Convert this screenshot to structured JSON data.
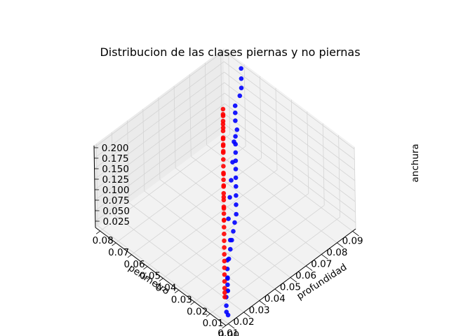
{
  "chart_data": {
    "type": "scatter",
    "projection": "3d",
    "title": "Distribucion de las clases piernas y no piernas",
    "xlabel": "perimetro",
    "ylabel": "profundidad",
    "zlabel": "anchura",
    "xlim": [
      0.0085,
      0.092
    ],
    "ylim": [
      0.0,
      0.083
    ],
    "zlim": [
      0.01,
      0.205
    ],
    "xticks": [
      "0.01",
      "0.02",
      "0.03",
      "0.04",
      "0.05",
      "0.06",
      "0.07",
      "0.08",
      "0.09"
    ],
    "xtick_values": [
      0.01,
      0.02,
      0.03,
      0.04,
      0.05,
      0.06,
      0.07,
      0.08,
      0.09
    ],
    "yticks": [
      "0.00",
      "0.01",
      "0.02",
      "0.03",
      "0.04",
      "0.05",
      "0.06",
      "0.07",
      "0.08"
    ],
    "ytick_values": [
      0.0,
      0.01,
      0.02,
      0.03,
      0.04,
      0.05,
      0.06,
      0.07,
      0.08
    ],
    "zticks": [
      "0.025",
      "0.050",
      "0.075",
      "0.100",
      "0.125",
      "0.150",
      "0.175",
      "0.200"
    ],
    "ztick_values": [
      0.025,
      0.05,
      0.075,
      0.1,
      0.125,
      0.15,
      0.175,
      0.2
    ],
    "grid": true,
    "pane_color": "#f2f2f2",
    "series": [
      {
        "color": "#0000ff",
        "points": [
          [
            0.0901,
            0.0701,
            0.2002
          ],
          [
            0.0861,
            0.0661,
            0.1982
          ],
          [
            0.0821,
            0.0621,
            0.1982
          ],
          [
            0.0781,
            0.0591,
            0.1992
          ],
          [
            0.0721,
            0.0561,
            0.2002
          ],
          [
            0.0691,
            0.0531,
            0.2002
          ],
          [
            0.0661,
            0.0501,
            0.1982
          ],
          [
            0.0631,
            0.0461,
            0.1962
          ],
          [
            0.0601,
            0.0441,
            0.1942
          ],
          [
            0.0571,
            0.0411,
            0.1922
          ],
          [
            0.0541,
            0.0381,
            0.1892
          ],
          [
            0.0511,
            0.0351,
            0.1862
          ],
          [
            0.0481,
            0.0321,
            0.1832
          ],
          [
            0.0451,
            0.0291,
            0.1792
          ],
          [
            0.0421,
            0.0261,
            0.1752
          ],
          [
            0.0391,
            0.0231,
            0.1702
          ],
          [
            0.0361,
            0.0201,
            0.1652
          ],
          [
            0.0331,
            0.0171,
            0.1592
          ],
          [
            0.0301,
            0.0151,
            0.1532
          ],
          [
            0.0271,
            0.0131,
            0.1462
          ],
          [
            0.0241,
            0.0111,
            0.1392
          ],
          [
            0.0211,
            0.0091,
            0.1312
          ],
          [
            0.0181,
            0.0071,
            0.1222
          ],
          [
            0.0151,
            0.0051,
            0.1122
          ],
          [
            0.0131,
            0.0031,
            0.1002
          ],
          [
            0.0121,
            0.0021,
            0.0912
          ],
          [
            0.0111,
            0.0011,
            0.0822
          ],
          [
            0.0101,
            0.0011,
            0.0702
          ],
          [
            0.0091,
            0.0001,
            0.0552
          ],
          [
            0.0091,
            0.0001,
            0.0402
          ],
          [
            0.0101,
            0.0001,
            0.0302
          ],
          [
            0.0151,
            0.0051,
            0.0602
          ],
          [
            0.0171,
            0.0071,
            0.0802
          ],
          [
            0.0201,
            0.0101,
            0.1052
          ],
          [
            0.0261,
            0.0141,
            0.1252
          ],
          [
            0.0311,
            0.0201,
            0.1452
          ],
          [
            0.0381,
            0.0261,
            0.1602
          ],
          [
            0.0441,
            0.0311,
            0.1702
          ],
          [
            0.0511,
            0.0371,
            0.1772
          ],
          [
            0.0591,
            0.0441,
            0.1842
          ]
        ]
      },
      {
        "color": "#ff0000",
        "points": [
          [
            0.0601,
            0.0521,
            0.1652
          ],
          [
            0.0581,
            0.0501,
            0.1602
          ],
          [
            0.0561,
            0.0481,
            0.1552
          ],
          [
            0.0541,
            0.0461,
            0.1502
          ],
          [
            0.0521,
            0.0441,
            0.1452
          ],
          [
            0.0501,
            0.0421,
            0.1402
          ],
          [
            0.0481,
            0.0401,
            0.1352
          ],
          [
            0.0461,
            0.0381,
            0.1302
          ],
          [
            0.0441,
            0.0361,
            0.1252
          ],
          [
            0.0421,
            0.0341,
            0.1202
          ],
          [
            0.0401,
            0.0321,
            0.1152
          ],
          [
            0.0381,
            0.0301,
            0.1102
          ],
          [
            0.0361,
            0.0281,
            0.1052
          ],
          [
            0.0341,
            0.0261,
            0.1002
          ],
          [
            0.0321,
            0.0241,
            0.0952
          ],
          [
            0.0301,
            0.0221,
            0.0902
          ],
          [
            0.0281,
            0.0201,
            0.0852
          ],
          [
            0.0261,
            0.0181,
            0.0802
          ],
          [
            0.0241,
            0.0161,
            0.0752
          ],
          [
            0.0221,
            0.0141,
            0.0702
          ],
          [
            0.0201,
            0.0121,
            0.0652
          ],
          [
            0.0181,
            0.0101,
            0.0602
          ],
          [
            0.0161,
            0.0081,
            0.0552
          ],
          [
            0.0151,
            0.0071,
            0.0502
          ],
          [
            0.0141,
            0.0061,
            0.0452
          ],
          [
            0.0701,
            0.0621,
            0.1452
          ],
          [
            0.0681,
            0.0601,
            0.1402
          ],
          [
            0.0661,
            0.0581,
            0.1352
          ],
          [
            0.0641,
            0.0561,
            0.1302
          ],
          [
            0.0621,
            0.0541,
            0.1252
          ],
          [
            0.0761,
            0.0681,
            0.1352
          ],
          [
            0.0741,
            0.0661,
            0.1302
          ],
          [
            0.0721,
            0.0641,
            0.1252
          ],
          [
            0.0801,
            0.0721,
            0.1252
          ],
          [
            0.0781,
            0.0701,
            0.1202
          ],
          [
            0.0541,
            0.0461,
            0.1152
          ],
          [
            0.0501,
            0.0421,
            0.1102
          ],
          [
            0.0461,
            0.0381,
            0.1052
          ],
          [
            0.0421,
            0.0341,
            0.1002
          ],
          [
            0.0381,
            0.0301,
            0.0952
          ]
        ]
      }
    ]
  }
}
